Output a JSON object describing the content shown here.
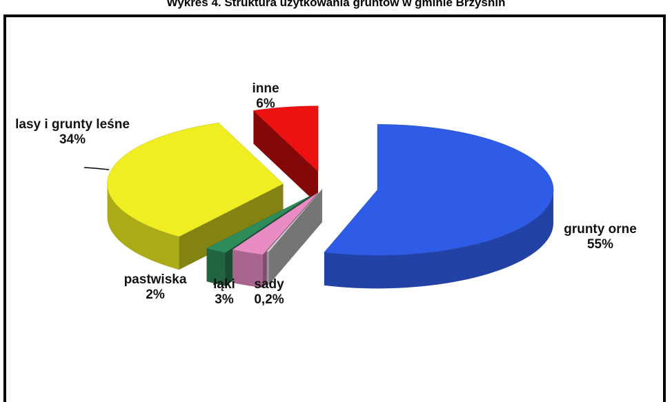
{
  "chart_data": {
    "type": "pie3d",
    "title": "Wykres 4. Struktura użytkowania gruntów w gminie Brzyśnin",
    "categories": [
      "grunty orne",
      "sady",
      "łąki",
      "pastwiska",
      "lasy i  grunty leśne",
      "inne"
    ],
    "values": [
      55,
      0.2,
      3,
      2,
      34,
      6
    ],
    "value_labels": [
      "55%",
      "0,2%",
      "3%",
      "2%",
      "34%",
      "6%"
    ],
    "colors": [
      "#2f5ce6",
      "#d4d4d4",
      "#e98cc4",
      "#2e8b5a",
      "#eeee22",
      "#ee1111"
    ]
  }
}
